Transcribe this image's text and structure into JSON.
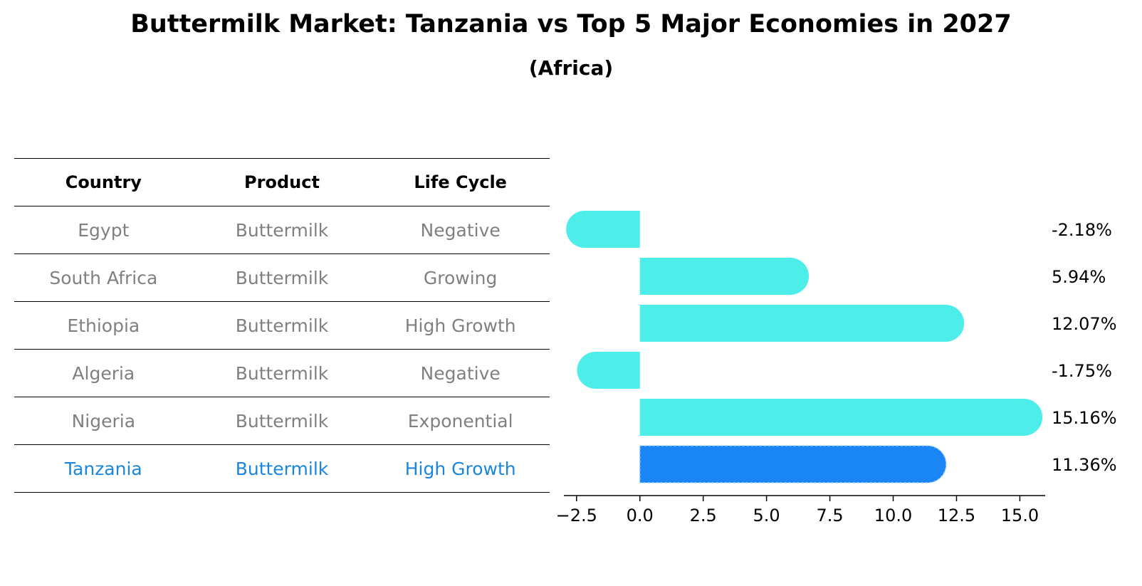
{
  "header": {
    "title": "Buttermilk Market: Tanzania vs Top 5 Major Economies in 2027",
    "subtitle": "(Africa)"
  },
  "table": {
    "columns": [
      "Country",
      "Product",
      "Life Cycle"
    ],
    "rows": [
      {
        "country": "Egypt",
        "product": "Buttermilk",
        "life_cycle": "Negative"
      },
      {
        "country": "South Africa",
        "product": "Buttermilk",
        "life_cycle": "Growing"
      },
      {
        "country": "Ethiopia",
        "product": "Buttermilk",
        "life_cycle": "High Growth"
      },
      {
        "country": "Algeria",
        "product": "Buttermilk",
        "life_cycle": "Negative"
      },
      {
        "country": "Nigeria",
        "product": "Buttermilk",
        "life_cycle": "Exponential"
      },
      {
        "country": "Tanzania",
        "product": "Buttermilk",
        "life_cycle": "High Growth"
      }
    ]
  },
  "colors": {
    "bar": "#4deeea",
    "highlight_bar": "#1a86f5",
    "highlight_text": "#1a86e0",
    "muted_text": "#808080"
  },
  "chart_data": {
    "type": "bar",
    "orientation": "horizontal",
    "categories": [
      "Egypt",
      "South Africa",
      "Ethiopia",
      "Algeria",
      "Nigeria",
      "Tanzania"
    ],
    "values": [
      -2.18,
      5.94,
      12.07,
      -1.75,
      15.16,
      11.36
    ],
    "value_labels": [
      "-2.18%",
      "5.94%",
      "12.07%",
      "-1.75%",
      "15.16%",
      "11.36%"
    ],
    "highlight": "Tanzania",
    "xlim": [
      -3.0,
      16.0
    ],
    "xticks": [
      -2.5,
      0.0,
      2.5,
      5.0,
      7.5,
      10.0,
      12.5,
      15.0
    ],
    "xtick_labels": [
      "−2.5",
      "0.0",
      "2.5",
      "5.0",
      "7.5",
      "10.0",
      "12.5",
      "15.0"
    ],
    "grid": false
  }
}
